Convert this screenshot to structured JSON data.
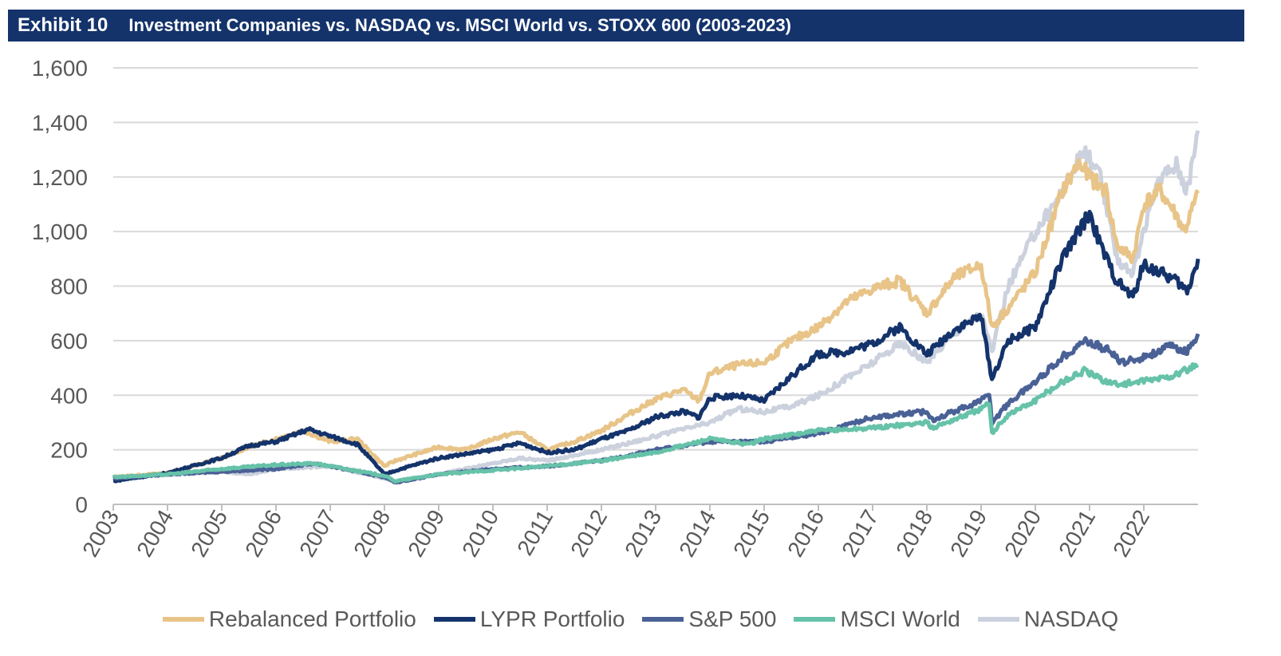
{
  "header": {
    "exhibit": "Exhibit 10",
    "title": "Investment Companies vs. NASDAQ vs. MSCI World vs. STOXX 600 (2003-2023)"
  },
  "chart_data": {
    "type": "line",
    "title": "Investment Companies vs. NASDAQ vs. MSCI World vs. STOXX 600 (2003-2023)",
    "xlabel": "",
    "ylabel": "",
    "xlim": [
      2003,
      2023
    ],
    "ylim": [
      0,
      1600
    ],
    "yticks": [
      0,
      200,
      400,
      600,
      800,
      1000,
      1200,
      1400,
      1600
    ],
    "ytick_labels": [
      "0",
      "200",
      "400",
      "600",
      "800",
      "1,000",
      "1,200",
      "1,400",
      "1,600"
    ],
    "xtick_labels": [
      "2003",
      "2004",
      "2005",
      "2006",
      "2007",
      "2008",
      "2009",
      "2010",
      "2011",
      "2012",
      "2013",
      "2014",
      "2015",
      "2016",
      "2017",
      "2018",
      "2019",
      "2020",
      "2021",
      "2022"
    ],
    "grid": "horizontal",
    "legend": "bottom",
    "series": [
      {
        "name": "Rebalanced Portfolio",
        "color": "#e8c488",
        "points": [
          [
            2003,
            100
          ],
          [
            2004,
            115
          ],
          [
            2005,
            170
          ],
          [
            2005.5,
            210
          ],
          [
            2006,
            240
          ],
          [
            2006.5,
            270
          ],
          [
            2007,
            230
          ],
          [
            2007.5,
            240
          ],
          [
            2008,
            140
          ],
          [
            2008.2,
            160
          ],
          [
            2009,
            210
          ],
          [
            2009.5,
            200
          ],
          [
            2010,
            240
          ],
          [
            2010.5,
            265
          ],
          [
            2011,
            200
          ],
          [
            2011.5,
            230
          ],
          [
            2012,
            270
          ],
          [
            2012.5,
            330
          ],
          [
            2013,
            385
          ],
          [
            2013.5,
            420
          ],
          [
            2013.8,
            380
          ],
          [
            2014,
            480
          ],
          [
            2014.5,
            510
          ],
          [
            2015,
            520
          ],
          [
            2015.5,
            600
          ],
          [
            2016,
            650
          ],
          [
            2016.5,
            740
          ],
          [
            2017,
            790
          ],
          [
            2017.5,
            820
          ],
          [
            2018,
            700
          ],
          [
            2018.5,
            830
          ],
          [
            2019,
            880
          ],
          [
            2019.2,
            650
          ],
          [
            2019.5,
            720
          ],
          [
            2020,
            850
          ],
          [
            2020.5,
            1150
          ],
          [
            2020.8,
            1250
          ],
          [
            2021,
            1200
          ],
          [
            2021.3,
            1150
          ],
          [
            2021.5,
            950
          ],
          [
            2021.8,
            900
          ],
          [
            2022,
            1100
          ],
          [
            2022.3,
            1150
          ],
          [
            2022.6,
            1060
          ],
          [
            2022.75,
            1000
          ],
          [
            2023,
            1140
          ]
        ]
      },
      {
        "name": "LYPR Portfolio",
        "color": "#14336b",
        "points": [
          [
            2003,
            85
          ],
          [
            2004,
            115
          ],
          [
            2005,
            170
          ],
          [
            2005.5,
            215
          ],
          [
            2006,
            230
          ],
          [
            2006.6,
            275
          ],
          [
            2007,
            250
          ],
          [
            2007.5,
            220
          ],
          [
            2008,
            110
          ],
          [
            2008.3,
            130
          ],
          [
            2009,
            170
          ],
          [
            2010,
            200
          ],
          [
            2010.5,
            225
          ],
          [
            2011,
            190
          ],
          [
            2011.5,
            200
          ],
          [
            2012,
            240
          ],
          [
            2012.5,
            270
          ],
          [
            2013,
            320
          ],
          [
            2013.5,
            340
          ],
          [
            2013.8,
            320
          ],
          [
            2014,
            390
          ],
          [
            2014.5,
            400
          ],
          [
            2015,
            380
          ],
          [
            2015.5,
            470
          ],
          [
            2016,
            550
          ],
          [
            2016.5,
            560
          ],
          [
            2017,
            590
          ],
          [
            2017.5,
            650
          ],
          [
            2018,
            550
          ],
          [
            2018.5,
            640
          ],
          [
            2019,
            690
          ],
          [
            2019.2,
            460
          ],
          [
            2019.5,
            600
          ],
          [
            2020,
            650
          ],
          [
            2020.5,
            900
          ],
          [
            2020.8,
            1000
          ],
          [
            2021,
            1070
          ],
          [
            2021.2,
            950
          ],
          [
            2021.5,
            820
          ],
          [
            2021.8,
            760
          ],
          [
            2022,
            880
          ],
          [
            2022.3,
            850
          ],
          [
            2022.6,
            820
          ],
          [
            2022.8,
            780
          ],
          [
            2023,
            900
          ]
        ]
      },
      {
        "name": "S&P 500",
        "color": "#4a6196",
        "points": [
          [
            2003,
            95
          ],
          [
            2004,
            110
          ],
          [
            2005,
            120
          ],
          [
            2006,
            130
          ],
          [
            2006.7,
            150
          ],
          [
            2007,
            140
          ],
          [
            2008,
            100
          ],
          [
            2008.2,
            80
          ],
          [
            2009,
            110
          ],
          [
            2010,
            130
          ],
          [
            2011,
            140
          ],
          [
            2012,
            160
          ],
          [
            2013,
            200
          ],
          [
            2014,
            230
          ],
          [
            2015,
            230
          ],
          [
            2016,
            260
          ],
          [
            2016.5,
            290
          ],
          [
            2017,
            320
          ],
          [
            2018,
            340
          ],
          [
            2018.1,
            310
          ],
          [
            2019,
            380
          ],
          [
            2019.15,
            410
          ],
          [
            2019.2,
            300
          ],
          [
            2019.5,
            370
          ],
          [
            2020,
            450
          ],
          [
            2020.5,
            540
          ],
          [
            2020.9,
            600
          ],
          [
            2021.3,
            570
          ],
          [
            2021.6,
            520
          ],
          [
            2022,
            540
          ],
          [
            2022.5,
            580
          ],
          [
            2022.8,
            560
          ],
          [
            2023,
            625
          ]
        ]
      },
      {
        "name": "MSCI World",
        "color": "#66c2a9",
        "points": [
          [
            2003,
            100
          ],
          [
            2004,
            110
          ],
          [
            2005,
            130
          ],
          [
            2006,
            145
          ],
          [
            2006.7,
            150
          ],
          [
            2007,
            140
          ],
          [
            2008,
            105
          ],
          [
            2008.2,
            85
          ],
          [
            2009,
            110
          ],
          [
            2010,
            125
          ],
          [
            2011,
            140
          ],
          [
            2012,
            160
          ],
          [
            2013,
            190
          ],
          [
            2014,
            240
          ],
          [
            2014.7,
            220
          ],
          [
            2015,
            240
          ],
          [
            2016,
            270
          ],
          [
            2017,
            280
          ],
          [
            2018,
            300
          ],
          [
            2018.1,
            280
          ],
          [
            2019,
            350
          ],
          [
            2019.15,
            370
          ],
          [
            2019.2,
            260
          ],
          [
            2019.5,
            330
          ],
          [
            2020,
            380
          ],
          [
            2020.5,
            450
          ],
          [
            2020.9,
            490
          ],
          [
            2021.2,
            460
          ],
          [
            2021.5,
            440
          ],
          [
            2022,
            450
          ],
          [
            2022.5,
            470
          ],
          [
            2023,
            510
          ]
        ]
      },
      {
        "name": "NASDAQ",
        "color": "#cbd1dd",
        "points": [
          [
            2003,
            100
          ],
          [
            2004,
            110
          ],
          [
            2005,
            120
          ],
          [
            2005.5,
            110
          ],
          [
            2006,
            130
          ],
          [
            2007,
            140
          ],
          [
            2008,
            95
          ],
          [
            2008.2,
            85
          ],
          [
            2009,
            110
          ],
          [
            2010,
            150
          ],
          [
            2010.5,
            170
          ],
          [
            2011,
            160
          ],
          [
            2012,
            200
          ],
          [
            2013,
            250
          ],
          [
            2014,
            300
          ],
          [
            2014.5,
            350
          ],
          [
            2015,
            340
          ],
          [
            2015.5,
            360
          ],
          [
            2016,
            400
          ],
          [
            2017,
            520
          ],
          [
            2017.5,
            590
          ],
          [
            2018,
            520
          ],
          [
            2018.5,
            630
          ],
          [
            2019,
            700
          ],
          [
            2019.2,
            560
          ],
          [
            2019.5,
            800
          ],
          [
            2020,
            1000
          ],
          [
            2020.5,
            1150
          ],
          [
            2020.9,
            1300
          ],
          [
            2021.2,
            1200
          ],
          [
            2021.5,
            900
          ],
          [
            2021.8,
            850
          ],
          [
            2022,
            1000
          ],
          [
            2022.3,
            1200
          ],
          [
            2022.6,
            1250
          ],
          [
            2022.8,
            1150
          ],
          [
            2023,
            1370
          ]
        ]
      }
    ]
  }
}
